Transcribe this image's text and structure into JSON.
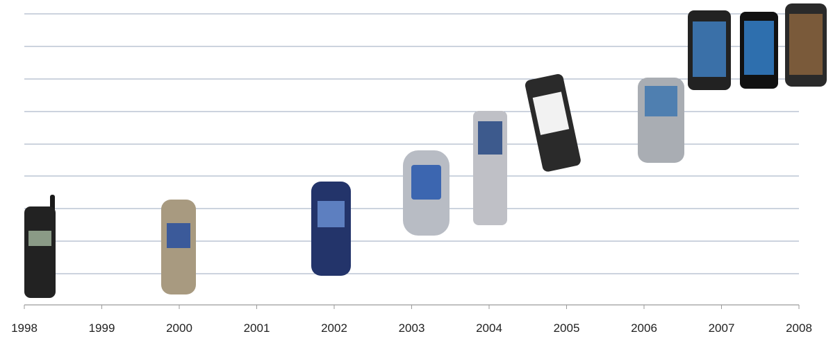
{
  "timeline": {
    "years": [
      1998,
      1999,
      2000,
      2001,
      2002,
      2003,
      2004,
      2005,
      2006,
      2007,
      2008
    ]
  }
}
